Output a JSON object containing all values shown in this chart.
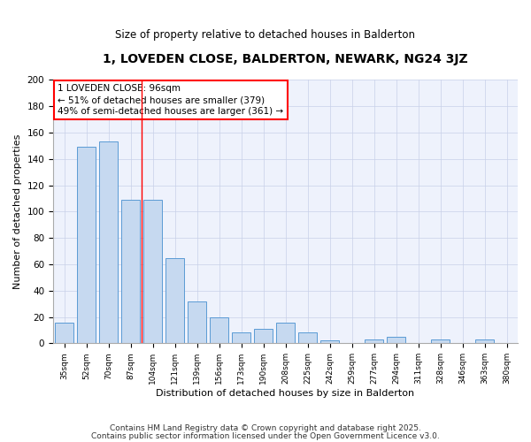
{
  "title": "1, LOVEDEN CLOSE, BALDERTON, NEWARK, NG24 3JZ",
  "subtitle": "Size of property relative to detached houses in Balderton",
  "xlabel": "Distribution of detached houses by size in Balderton",
  "ylabel": "Number of detached properties",
  "categories": [
    "35sqm",
    "52sqm",
    "70sqm",
    "87sqm",
    "104sqm",
    "121sqm",
    "139sqm",
    "156sqm",
    "173sqm",
    "190sqm",
    "208sqm",
    "225sqm",
    "242sqm",
    "259sqm",
    "277sqm",
    "294sqm",
    "311sqm",
    "328sqm",
    "346sqm",
    "363sqm",
    "380sqm"
  ],
  "values": [
    16,
    149,
    153,
    109,
    109,
    65,
    32,
    20,
    8,
    11,
    16,
    8,
    2,
    0,
    3,
    5,
    0,
    3,
    0,
    3,
    0
  ],
  "bar_color": "#c6d9f0",
  "bar_edge_color": "#5b9bd5",
  "red_line_x": 3.5,
  "annotation_title": "1 LOVEDEN CLOSE: 96sqm",
  "annotation_line1": "← 51% of detached houses are smaller (379)",
  "annotation_line2": "49% of semi-detached houses are larger (361) →",
  "ylim": [
    0,
    200
  ],
  "yticks": [
    0,
    20,
    40,
    60,
    80,
    100,
    120,
    140,
    160,
    180,
    200
  ],
  "bg_color": "#eef2fc",
  "grid_color": "#c8d0e8",
  "footer_line1": "Contains HM Land Registry data © Crown copyright and database right 2025.",
  "footer_line2": "Contains public sector information licensed under the Open Government Licence v3.0."
}
